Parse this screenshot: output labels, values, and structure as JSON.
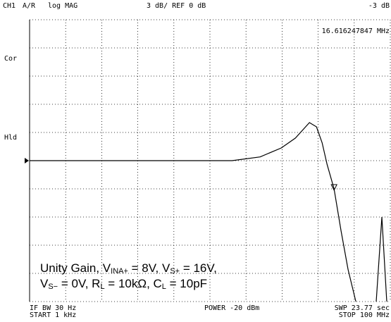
{
  "chart_data": {
    "type": "line",
    "header": {
      "channel": "CH1",
      "input": "A/R",
      "format": "log MAG",
      "scale": "3 dB/ REF 0 dB",
      "marker_value": "-3 dB",
      "marker_freq": "16.616247847 MHz",
      "cor": "Cor",
      "hld": "Hld"
    },
    "footer": {
      "ifbw": "IF BW 30 Hz",
      "start": "START 1 kHz",
      "power": "POWER -20 dBm",
      "sweep": "SWP 23.77 sec",
      "stop": "STOP 100 MHz"
    },
    "annotation": {
      "line1": [
        "Unity Gain, V",
        "INA+",
        " = 8V, V",
        "S+",
        " = 16V,"
      ],
      "line2": [
        "V",
        "S−",
        " = 0V, R",
        "L",
        " = 10kΩ, C",
        "L",
        " = 10pF"
      ]
    },
    "x": [
      1000,
      34670,
      641000,
      1570000,
      3080000,
      4830000,
      7570000,
      9480000,
      11350000,
      13300000,
      16616247.847,
      20800000,
      26000000,
      33300000,
      null,
      63800000,
      76400000,
      89300000
    ],
    "series": [
      {
        "color": "#000000",
        "values": [
          0,
          0,
          0,
          0.4,
          1.35,
          2.4,
          4.05,
          3.6,
          1.9,
          -0.4,
          -3,
          -7.5,
          -11.6,
          -15,
          null,
          -15,
          -6,
          -15
        ]
      }
    ],
    "marker": {
      "x": 16616247.847,
      "y": -3
    },
    "ref_level": 0,
    "xlog": true,
    "xlim": [
      1000,
      100000000
    ],
    "xticks": [
      1000,
      3162.28,
      10000,
      31622.8,
      100000,
      316228,
      1000000,
      3162280,
      10000000,
      31622800,
      100000000
    ],
    "ylim": [
      -15,
      15
    ],
    "yticks": [
      -15,
      -12,
      -9,
      -6,
      -3,
      0,
      3,
      6,
      9,
      12,
      15
    ],
    "grid": true
  }
}
